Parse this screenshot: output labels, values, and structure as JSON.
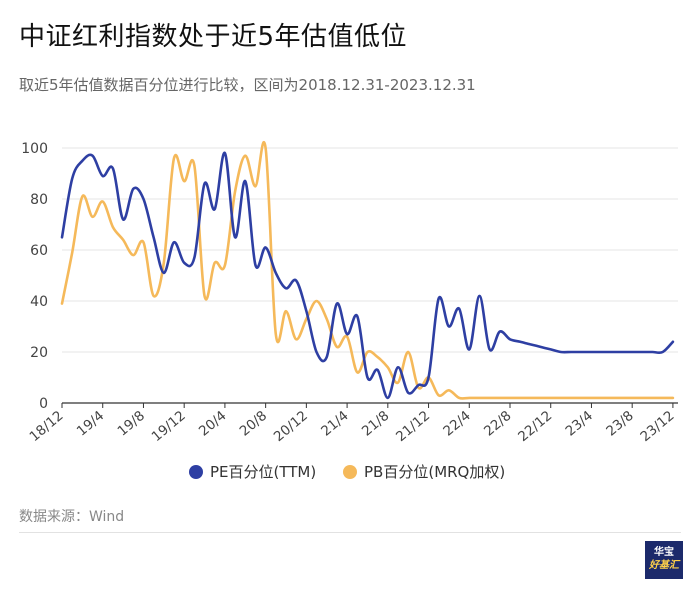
{
  "title": "中证红利指数处于近5年估值低位",
  "subtitle": "取近5年估值数据百分位进行比较，区间为2018.12.31-2023.12.31",
  "source": "数据来源：Wind",
  "logo": {
    "line1": "华宝",
    "line2": "好基汇"
  },
  "colors": {
    "pe": "#2e3fa3",
    "pb": "#f5b95a",
    "grid": "#e6e6e6",
    "axis": "#333333",
    "bg": "#1c2a6b"
  },
  "chart_data": {
    "type": "line",
    "title": "中证红利指数处于近5年估值低位",
    "xlabel": "",
    "ylabel": "",
    "ylim": [
      0,
      100
    ],
    "yticks": [
      0,
      20,
      40,
      60,
      80,
      100
    ],
    "xlim": [
      0,
      60.5
    ],
    "x_tick_positions": [
      0,
      4,
      8,
      12,
      16,
      20,
      24,
      28,
      32,
      36,
      40,
      44,
      48,
      52,
      56,
      60
    ],
    "x_tick_labels": [
      "18/12",
      "19/4",
      "19/8",
      "19/12",
      "20/4",
      "20/8",
      "20/12",
      "21/4",
      "21/8",
      "21/12",
      "22/4",
      "22/8",
      "22/12",
      "23/4",
      "23/8",
      "23/12"
    ],
    "legend_position": "bottom",
    "series": [
      {
        "name": "PE百分位(TTM)",
        "x": [
          0,
          1,
          2,
          3,
          4,
          5,
          6,
          7,
          8,
          9,
          10,
          11,
          12,
          13,
          14,
          15,
          16,
          17,
          18,
          19,
          20,
          21,
          22,
          23,
          24,
          25,
          26,
          27,
          28,
          29,
          30,
          31,
          32,
          33,
          34,
          35,
          36,
          37,
          38,
          39,
          40,
          41,
          42,
          43,
          44,
          45,
          46,
          47,
          48,
          49,
          50,
          51,
          52,
          53,
          54,
          55,
          56,
          57,
          58,
          59,
          60
        ],
        "values": [
          65,
          88,
          95,
          97,
          89,
          92,
          72,
          84,
          80,
          65,
          51,
          63,
          55,
          57,
          86,
          76,
          98,
          65,
          87,
          54,
          61,
          51,
          45,
          48,
          36,
          20,
          18,
          39,
          27,
          34,
          10,
          13,
          2,
          14,
          4,
          7,
          10,
          41,
          30,
          37,
          21,
          42,
          21,
          28,
          25,
          24,
          23,
          22,
          21,
          20,
          20,
          20,
          20,
          20,
          20,
          20,
          20,
          20,
          20,
          20,
          24
        ],
        "values_note": "PE series values by month index"
      },
      {
        "name": "PB百分位(MRQ加权)",
        "x": [
          0,
          1,
          2,
          3,
          4,
          5,
          6,
          7,
          8,
          9,
          10,
          11,
          12,
          13,
          14,
          15,
          16,
          17,
          18,
          19,
          20,
          21,
          22,
          23,
          24,
          25,
          26,
          27,
          28,
          29,
          30,
          31,
          32,
          33,
          34,
          35,
          36,
          37,
          38,
          39,
          40,
          41,
          42,
          43,
          44,
          45,
          46,
          47,
          48,
          49,
          50,
          51,
          52,
          53,
          54,
          55,
          56,
          57,
          58,
          59,
          60
        ],
        "values": [
          39,
          59,
          81,
          73,
          79,
          69,
          64,
          58,
          63,
          42,
          55,
          96,
          87,
          93,
          42,
          55,
          54,
          83,
          97,
          85,
          100,
          27,
          36,
          25,
          33,
          40,
          33,
          22,
          26,
          12,
          20,
          18,
          14,
          8,
          20,
          6,
          10,
          3,
          5,
          2,
          2,
          2,
          2,
          2,
          2,
          2,
          2,
          2,
          2,
          2,
          2,
          2,
          2,
          2,
          2,
          2,
          2,
          2,
          2,
          2,
          2
        ]
      }
    ]
  }
}
